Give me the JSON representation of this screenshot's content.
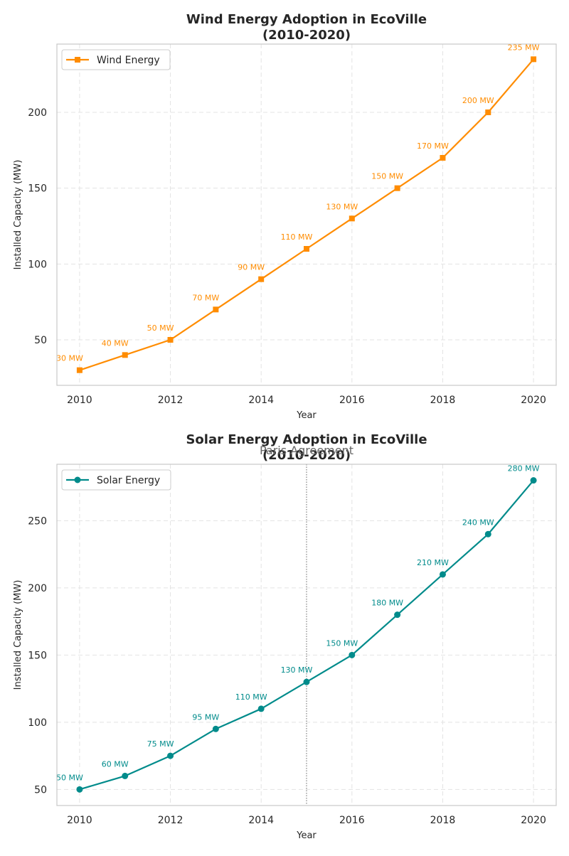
{
  "chart_data": [
    {
      "type": "line",
      "title_line1": "Wind Energy Adoption in EcoVille",
      "title_line2": "(2010-2020)",
      "xlabel": "Year",
      "ylabel": "Installed Capacity (MW)",
      "x": [
        2010,
        2011,
        2012,
        2013,
        2014,
        2015,
        2016,
        2017,
        2018,
        2019,
        2020
      ],
      "xticks": [
        2010,
        2012,
        2014,
        2016,
        2018,
        2020
      ],
      "yticks": [
        50,
        100,
        150,
        200
      ],
      "xlim": [
        2009.5,
        2020.5
      ],
      "ylim": [
        20,
        245
      ],
      "grid": true,
      "legend_position": "upper-left",
      "series": [
        {
          "name": "Wind Energy",
          "color": "#ff8c00",
          "marker": "square",
          "values": [
            30,
            40,
            50,
            70,
            90,
            110,
            130,
            150,
            170,
            200,
            235
          ],
          "labels": [
            "30 MW",
            "40 MW",
            "50 MW",
            "70 MW",
            "90 MW",
            "110 MW",
            "130 MW",
            "150 MW",
            "170 MW",
            "200 MW",
            "235 MW"
          ]
        }
      ]
    },
    {
      "type": "line",
      "title_line1": "Solar Energy Adoption in EcoVille",
      "title_line2": "(2010-2020)",
      "xlabel": "Year",
      "ylabel": "Installed Capacity (MW)",
      "x": [
        2010,
        2011,
        2012,
        2013,
        2014,
        2015,
        2016,
        2017,
        2018,
        2019,
        2020
      ],
      "xticks": [
        2010,
        2012,
        2014,
        2016,
        2018,
        2020
      ],
      "yticks": [
        50,
        100,
        150,
        200,
        250
      ],
      "xlim": [
        2009.5,
        2020.5
      ],
      "ylim": [
        38,
        292
      ],
      "grid": true,
      "legend_position": "upper-left",
      "vline": {
        "x": 2015,
        "label": "Paris Agreement",
        "color": "#808080"
      },
      "series": [
        {
          "name": "Solar Energy",
          "color": "#008b8b",
          "marker": "circle",
          "values": [
            50,
            60,
            75,
            95,
            110,
            130,
            150,
            180,
            210,
            240,
            280
          ],
          "labels": [
            "50 MW",
            "60 MW",
            "75 MW",
            "95 MW",
            "110 MW",
            "130 MW",
            "150 MW",
            "180 MW",
            "210 MW",
            "240 MW",
            "280 MW"
          ]
        }
      ]
    }
  ]
}
